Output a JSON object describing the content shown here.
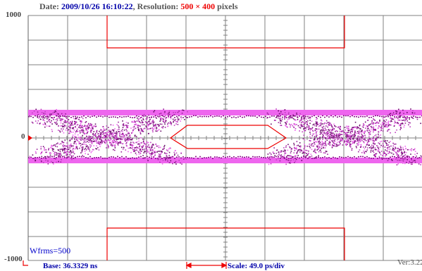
{
  "header": {
    "date_label": "Date: ",
    "date_value": "2009/10/26 16:10:22",
    "resolution_label": ", Resolution: ",
    "res_w": "500",
    "times": " × ",
    "res_h": "400",
    "pixels_label": " pixels"
  },
  "y_axis": {
    "top": "1000",
    "zero": "0",
    "bottom": "-1000"
  },
  "waveform_count": "Wfrms=500",
  "footer": {
    "base": "Base: 36.3329 ns",
    "scale": "Scale: 49.0 ps/div",
    "version": "Ver:3.22"
  },
  "colors": {
    "grid": "#808080",
    "mask": "#ee0000",
    "eye_band": "#ee66ee",
    "eye_dark": "#6a0a6a",
    "text_blue": "#0000aa"
  }
}
